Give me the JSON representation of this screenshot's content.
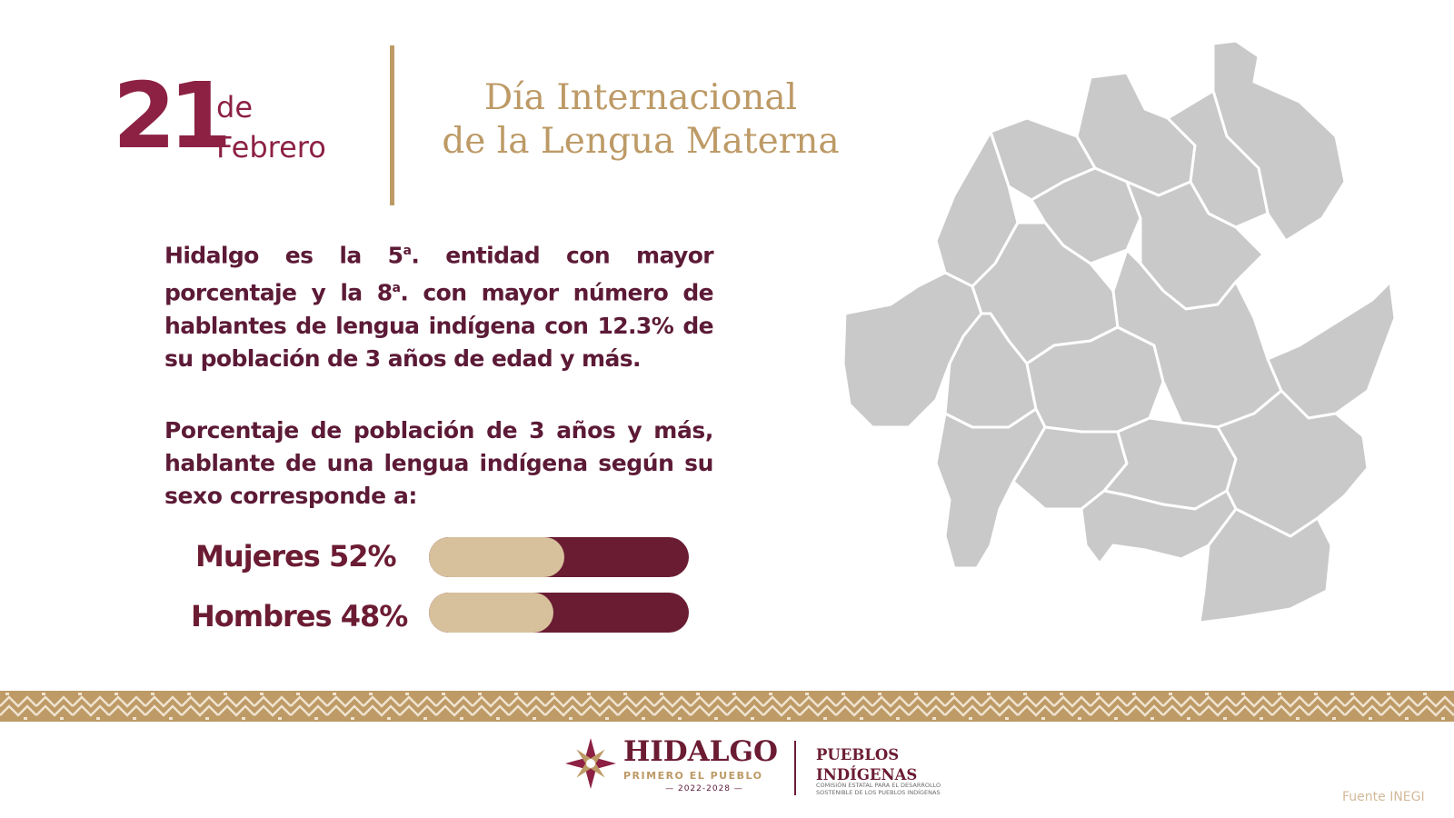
{
  "date": {
    "day": "21",
    "de": "de",
    "month": "Febrero"
  },
  "title": {
    "line1": "Día Internacional",
    "line2": "de la Lengua Materna"
  },
  "paragraph1": {
    "part1": "Hidalgo es la 5",
    "ord1": "a",
    "part2": ". entidad con mayor porcentaje y la 8",
    "ord2": "a",
    "part3": ". con mayor número de hablantes de lengua indígena con 12.3% de su población de 3 años de edad y más."
  },
  "paragraph2": "Porcentaje de población de 3 años y más, hablante de una lengua indígena según su sexo corresponde a:",
  "bars": [
    {
      "label": "Mujeres 52%",
      "value": 52
    },
    {
      "label": "Hombres 48%",
      "value": 48
    }
  ],
  "colors": {
    "accent": "#8c2143",
    "gold": "#bd9a66",
    "dark": "#6a1c33",
    "fill": "#d7c19c",
    "map": "#c9c9c9"
  },
  "footer": {
    "logo_title": "HIDALGO",
    "logo_subtitle": "PRIMERO EL PUEBLO",
    "logo_years": "— 2022-2028 —",
    "org_line1": "PUEBLOS",
    "org_line2": "INDÍGENAS",
    "org_sub_line1": "COMISIÓN ESTATAL PARA EL DESARROLLO",
    "org_sub_line2": "SOSTENIBLE DE LOS PUEBLOS INDÍGENAS",
    "source": "Fuente INEGI"
  }
}
